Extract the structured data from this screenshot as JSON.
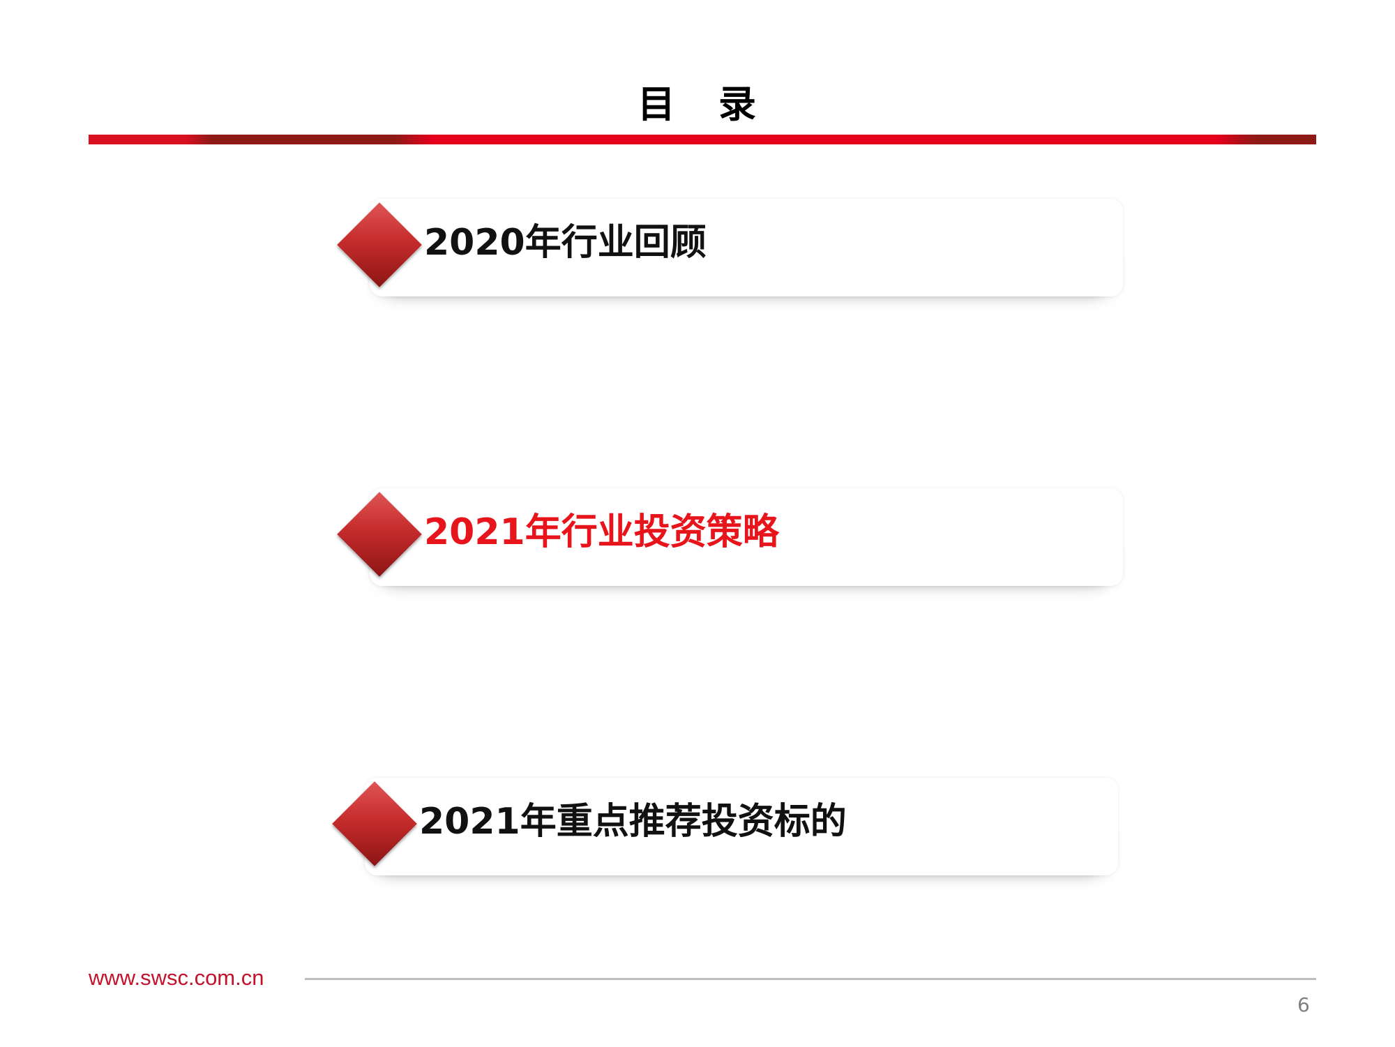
{
  "header": {
    "title_chars": [
      "目",
      "录"
    ]
  },
  "toc": {
    "items": [
      {
        "label": "2020年行业回顾",
        "active": false
      },
      {
        "label": "2021年行业投资策略",
        "active": true
      },
      {
        "label": "2021年重点推荐投资标的",
        "active": false
      }
    ]
  },
  "footer": {
    "url": "www.swsc.com.cn",
    "page_number": "6"
  },
  "colors": {
    "accent_red": "#e8141b",
    "dark_red": "#8e1a17",
    "url_red": "#c3122a"
  }
}
